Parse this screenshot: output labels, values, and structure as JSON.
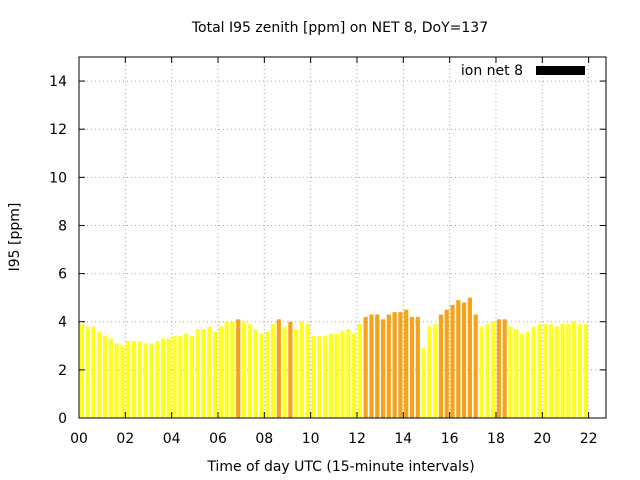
{
  "chart_data": {
    "type": "bar",
    "title": "Total I95 zenith [ppm] on NET 8, DoY=137",
    "xlabel": "Time of day UTC (15-minute intervals)",
    "ylabel": "I95 [ppm]",
    "xlim": [
      0,
      22.75
    ],
    "ylim": [
      0,
      15
    ],
    "x_ticks": [
      "00",
      "02",
      "04",
      "06",
      "08",
      "10",
      "12",
      "14",
      "16",
      "18",
      "20",
      "22"
    ],
    "x_tick_values": [
      0,
      2,
      4,
      6,
      8,
      10,
      12,
      14,
      16,
      18,
      20,
      22
    ],
    "y_ticks": [
      "0",
      "2",
      "4",
      "6",
      "8",
      "10",
      "12",
      "14"
    ],
    "y_tick_values": [
      0,
      2,
      4,
      6,
      8,
      10,
      12,
      14
    ],
    "grid": true,
    "legend": {
      "label": "ion net 8",
      "position": "top-right",
      "color": "#000000"
    },
    "interval_hours": 0.25,
    "colors": {
      "normal": "#ffff1f",
      "elevated": "#f5a31a"
    },
    "values": [
      3.9,
      3.8,
      3.8,
      3.6,
      3.4,
      3.3,
      3.1,
      3.0,
      3.2,
      3.2,
      3.2,
      3.1,
      3.1,
      3.2,
      3.3,
      3.3,
      3.4,
      3.4,
      3.5,
      3.4,
      3.7,
      3.7,
      3.8,
      3.6,
      3.8,
      4.0,
      4.0,
      4.1,
      4.0,
      3.9,
      3.7,
      3.5,
      3.6,
      3.9,
      4.1,
      3.8,
      4.0,
      3.7,
      4.0,
      3.9,
      3.4,
      3.4,
      3.4,
      3.5,
      3.5,
      3.6,
      3.7,
      3.5,
      3.9,
      4.2,
      4.3,
      4.3,
      4.1,
      4.3,
      4.4,
      4.4,
      4.5,
      4.2,
      4.2,
      2.9,
      3.8,
      3.9,
      4.3,
      4.5,
      4.7,
      4.9,
      4.8,
      5.0,
      4.3,
      3.8,
      3.9,
      4.0,
      4.1,
      4.1,
      3.8,
      3.7,
      3.5,
      3.6,
      3.8,
      3.9,
      3.9,
      3.9,
      3.8,
      3.9,
      3.9,
      4.0,
      3.9,
      3.9
    ],
    "elevated": [
      0,
      0,
      0,
      0,
      0,
      0,
      0,
      0,
      0,
      0,
      0,
      0,
      0,
      0,
      0,
      0,
      0,
      0,
      0,
      0,
      0,
      0,
      0,
      0,
      0,
      0,
      0,
      1,
      0,
      0,
      0,
      0,
      0,
      0,
      1,
      0,
      1,
      0,
      0,
      0,
      0,
      0,
      0,
      0,
      0,
      0,
      0,
      0,
      0,
      1,
      1,
      1,
      1,
      1,
      1,
      1,
      1,
      1,
      1,
      0,
      0,
      0,
      1,
      1,
      1,
      1,
      1,
      1,
      1,
      0,
      0,
      0,
      1,
      1,
      0,
      0,
      0,
      0,
      0,
      0,
      0,
      0,
      0,
      0,
      0,
      0,
      0,
      0
    ]
  }
}
